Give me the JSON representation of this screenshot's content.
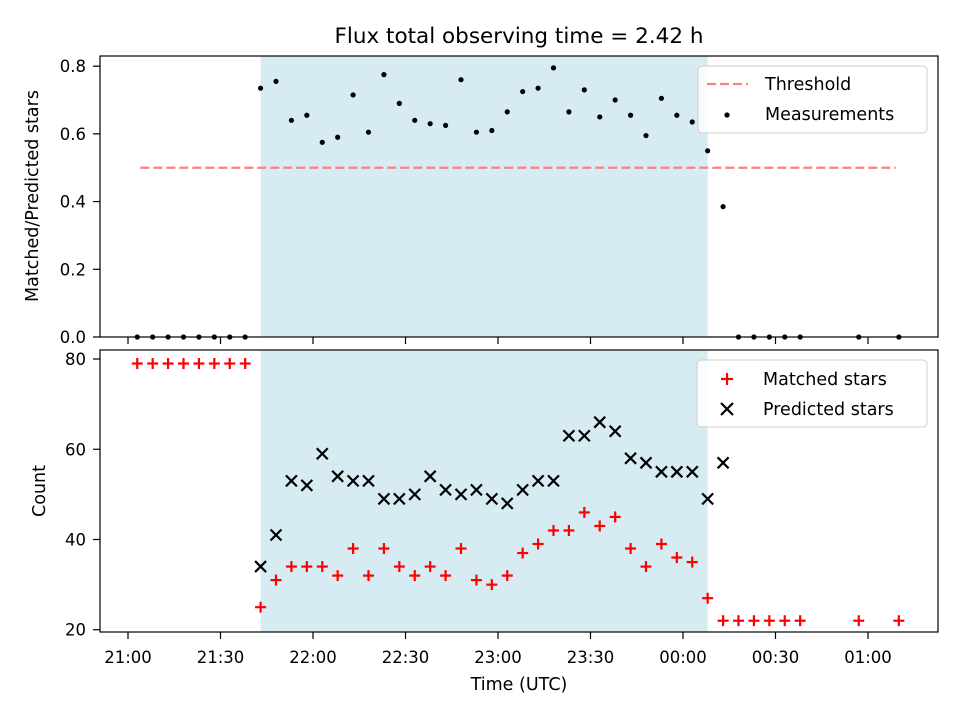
{
  "chart_data": {
    "title": "Flux total observing time = 2.42 h",
    "xlabel": "Time (UTC)",
    "x_ticks": [
      "21:00",
      "21:30",
      "22:00",
      "22:30",
      "23:00",
      "23:30",
      "00:00",
      "00:30",
      "01:00"
    ],
    "shaded_interval": [
      "21:43",
      "00:08"
    ],
    "colors": {
      "shade": "#add8e6",
      "threshold": "#ff8080",
      "matched": "#ff0000",
      "predicted": "#000000",
      "measurement": "#000000"
    },
    "panels": [
      {
        "type": "scatter",
        "ylabel": "Matched/Predicted stars",
        "ylim": [
          0.0,
          0.83
        ],
        "yticks": [
          "0.0",
          "0.2",
          "0.4",
          "0.6",
          "0.8"
        ],
        "legend_position": "top-right",
        "threshold": {
          "name": "Threshold",
          "value": 0.5,
          "x_range": [
            "21:04",
            "01:09"
          ]
        },
        "series": [
          {
            "name": "Measurements",
            "marker": "dot",
            "points": [
              [
                "21:03",
                0
              ],
              [
                "21:08",
                0
              ],
              [
                "21:13",
                0
              ],
              [
                "21:18",
                0
              ],
              [
                "21:23",
                0
              ],
              [
                "21:28",
                0
              ],
              [
                "21:33",
                0
              ],
              [
                "21:38",
                0
              ],
              [
                "21:43",
                0.735
              ],
              [
                "21:48",
                0.755
              ],
              [
                "21:53",
                0.64
              ],
              [
                "21:58",
                0.655
              ],
              [
                "22:03",
                0.575
              ],
              [
                "22:08",
                0.59
              ],
              [
                "22:13",
                0.715
              ],
              [
                "22:18",
                0.605
              ],
              [
                "22:23",
                0.775
              ],
              [
                "22:28",
                0.69
              ],
              [
                "22:33",
                0.64
              ],
              [
                "22:38",
                0.63
              ],
              [
                "22:43",
                0.625
              ],
              [
                "22:48",
                0.76
              ],
              [
                "22:53",
                0.605
              ],
              [
                "22:58",
                0.61
              ],
              [
                "23:03",
                0.665
              ],
              [
                "23:08",
                0.725
              ],
              [
                "23:13",
                0.735
              ],
              [
                "23:18",
                0.795
              ],
              [
                "23:23",
                0.665
              ],
              [
                "23:28",
                0.73
              ],
              [
                "23:33",
                0.65
              ],
              [
                "23:38",
                0.7
              ],
              [
                "23:43",
                0.655
              ],
              [
                "23:48",
                0.595
              ],
              [
                "23:53",
                0.705
              ],
              [
                "23:58",
                0.655
              ],
              [
                "00:03",
                0.635
              ],
              [
                "00:08",
                0.55
              ],
              [
                "00:13",
                0.385
              ],
              [
                "00:18",
                0
              ],
              [
                "00:23",
                0
              ],
              [
                "00:28",
                0
              ],
              [
                "00:33",
                0
              ],
              [
                "00:38",
                0
              ],
              [
                "00:57",
                0
              ],
              [
                "01:10",
                0
              ]
            ]
          }
        ]
      },
      {
        "type": "scatter",
        "ylabel": "Count",
        "ylim": [
          19.5,
          82
        ],
        "yticks": [
          "20",
          "40",
          "60",
          "80"
        ],
        "legend_position": "top-right",
        "series": [
          {
            "name": "Matched stars",
            "marker": "plus",
            "points": [
              [
                "21:03",
                79
              ],
              [
                "21:08",
                79
              ],
              [
                "21:13",
                79
              ],
              [
                "21:18",
                79
              ],
              [
                "21:23",
                79
              ],
              [
                "21:28",
                79
              ],
              [
                "21:33",
                79
              ],
              [
                "21:38",
                79
              ],
              [
                "21:43",
                25
              ],
              [
                "21:48",
                31
              ],
              [
                "21:53",
                34
              ],
              [
                "21:58",
                34
              ],
              [
                "22:03",
                34
              ],
              [
                "22:08",
                32
              ],
              [
                "22:13",
                38
              ],
              [
                "22:18",
                32
              ],
              [
                "22:23",
                38
              ],
              [
                "22:28",
                34
              ],
              [
                "22:33",
                32
              ],
              [
                "22:38",
                34
              ],
              [
                "22:43",
                32
              ],
              [
                "22:48",
                38
              ],
              [
                "22:53",
                31
              ],
              [
                "22:58",
                30
              ],
              [
                "23:03",
                32
              ],
              [
                "23:08",
                37
              ],
              [
                "23:13",
                39
              ],
              [
                "23:18",
                42
              ],
              [
                "23:23",
                42
              ],
              [
                "23:28",
                46
              ],
              [
                "23:33",
                43
              ],
              [
                "23:38",
                45
              ],
              [
                "23:43",
                38
              ],
              [
                "23:48",
                34
              ],
              [
                "23:53",
                39
              ],
              [
                "23:58",
                36
              ],
              [
                "00:03",
                35
              ],
              [
                "00:08",
                27
              ],
              [
                "00:13",
                22
              ],
              [
                "00:18",
                22
              ],
              [
                "00:23",
                22
              ],
              [
                "00:28",
                22
              ],
              [
                "00:33",
                22
              ],
              [
                "00:38",
                22
              ],
              [
                "00:57",
                22
              ],
              [
                "01:10",
                22
              ]
            ]
          },
          {
            "name": "Predicted stars",
            "marker": "x",
            "points": [
              [
                "21:43",
                34
              ],
              [
                "21:48",
                41
              ],
              [
                "21:53",
                53
              ],
              [
                "21:58",
                52
              ],
              [
                "22:03",
                59
              ],
              [
                "22:08",
                54
              ],
              [
                "22:13",
                53
              ],
              [
                "22:18",
                53
              ],
              [
                "22:23",
                49
              ],
              [
                "22:28",
                49
              ],
              [
                "22:33",
                50
              ],
              [
                "22:38",
                54
              ],
              [
                "22:43",
                51
              ],
              [
                "22:48",
                50
              ],
              [
                "22:53",
                51
              ],
              [
                "22:58",
                49
              ],
              [
                "23:03",
                48
              ],
              [
                "23:08",
                51
              ],
              [
                "23:13",
                53
              ],
              [
                "23:18",
                53
              ],
              [
                "23:23",
                63
              ],
              [
                "23:28",
                63
              ],
              [
                "23:33",
                66
              ],
              [
                "23:38",
                64
              ],
              [
                "23:43",
                58
              ],
              [
                "23:48",
                57
              ],
              [
                "23:53",
                55
              ],
              [
                "23:58",
                55
              ],
              [
                "00:03",
                55
              ],
              [
                "00:08",
                49
              ],
              [
                "00:13",
                57
              ]
            ]
          }
        ]
      }
    ]
  }
}
